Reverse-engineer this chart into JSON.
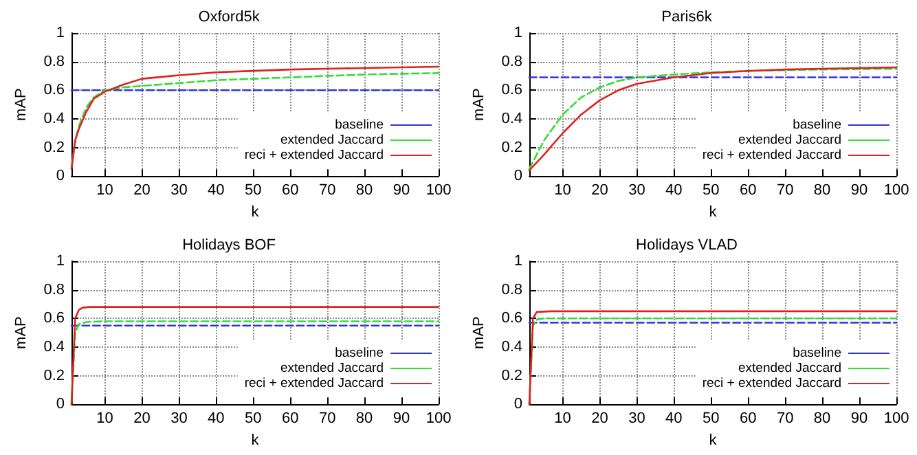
{
  "chart_data": [
    {
      "type": "line",
      "title": "Oxford5k",
      "xlabel": "k",
      "ylabel": "mAP",
      "xlim": [
        1,
        100
      ],
      "ylim": [
        0,
        1
      ],
      "xticks": [
        10,
        20,
        30,
        40,
        50,
        60,
        70,
        80,
        90,
        100
      ],
      "yticks": [
        0,
        0.2,
        0.4,
        0.6,
        0.8,
        1
      ],
      "grid": true,
      "legend": "bottom right",
      "marker": "none",
      "series": [
        {
          "name": "baseline",
          "color": "#3333dd",
          "line_style": "dashed",
          "x": [
            1,
            100
          ],
          "values": [
            0.6,
            0.6
          ]
        },
        {
          "name": "extended Jaccard",
          "color": "#33dd33",
          "line_style": "dashed",
          "x": [
            1,
            2,
            3,
            5,
            7,
            10,
            15,
            20,
            30,
            40,
            50,
            60,
            70,
            80,
            90,
            100
          ],
          "values": [
            0.05,
            0.25,
            0.35,
            0.48,
            0.55,
            0.6,
            0.62,
            0.63,
            0.65,
            0.67,
            0.68,
            0.69,
            0.7,
            0.71,
            0.715,
            0.72
          ]
        },
        {
          "name": "reci + extended Jaccard",
          "color": "#dd2222",
          "line_style": "solid",
          "x": [
            1,
            2,
            3,
            5,
            7,
            10,
            15,
            20,
            30,
            40,
            50,
            60,
            70,
            80,
            90,
            100
          ],
          "values": [
            0.05,
            0.25,
            0.33,
            0.45,
            0.54,
            0.59,
            0.64,
            0.68,
            0.705,
            0.725,
            0.735,
            0.745,
            0.75,
            0.755,
            0.76,
            0.765
          ]
        }
      ]
    },
    {
      "type": "line",
      "title": "Paris6k",
      "xlabel": "k",
      "ylabel": "mAP",
      "xlim": [
        1,
        100
      ],
      "ylim": [
        0,
        1
      ],
      "xticks": [
        10,
        20,
        30,
        40,
        50,
        60,
        70,
        80,
        90,
        100
      ],
      "yticks": [
        0,
        0.2,
        0.4,
        0.6,
        0.8,
        1
      ],
      "grid": true,
      "legend": "bottom right",
      "marker": "none",
      "series": [
        {
          "name": "baseline",
          "color": "#3333dd",
          "line_style": "dashed",
          "x": [
            1,
            100
          ],
          "values": [
            0.69,
            0.69
          ]
        },
        {
          "name": "extended Jaccard",
          "color": "#33dd33",
          "line_style": "dashed",
          "x": [
            1,
            5,
            10,
            15,
            20,
            25,
            30,
            40,
            50,
            60,
            70,
            80,
            90,
            100
          ],
          "values": [
            0.05,
            0.25,
            0.43,
            0.55,
            0.62,
            0.665,
            0.69,
            0.71,
            0.725,
            0.735,
            0.74,
            0.745,
            0.748,
            0.75
          ]
        },
        {
          "name": "reci + extended Jaccard",
          "color": "#dd2222",
          "line_style": "solid",
          "x": [
            1,
            5,
            10,
            15,
            20,
            25,
            30,
            40,
            50,
            60,
            70,
            80,
            90,
            100
          ],
          "values": [
            0.04,
            0.15,
            0.3,
            0.43,
            0.53,
            0.6,
            0.645,
            0.69,
            0.72,
            0.735,
            0.745,
            0.75,
            0.755,
            0.76
          ]
        }
      ]
    },
    {
      "type": "line",
      "title": "Holidays BOF",
      "xlabel": "k",
      "ylabel": "mAP",
      "xlim": [
        1,
        100
      ],
      "ylim": [
        0,
        1
      ],
      "xticks": [
        10,
        20,
        30,
        40,
        50,
        60,
        70,
        80,
        90,
        100
      ],
      "yticks": [
        0,
        0.2,
        0.4,
        0.6,
        0.8,
        1
      ],
      "grid": true,
      "legend": "bottom right",
      "marker": "none",
      "series": [
        {
          "name": "baseline",
          "color": "#3333dd",
          "line_style": "dashed",
          "x": [
            1,
            100
          ],
          "values": [
            0.55,
            0.55
          ]
        },
        {
          "name": "extended Jaccard",
          "color": "#33dd33",
          "line_style": "dashed",
          "x": [
            1,
            2,
            3,
            5,
            10,
            100
          ],
          "values": [
            0,
            0.5,
            0.56,
            0.575,
            0.58,
            0.58
          ]
        },
        {
          "name": "reci + extended Jaccard",
          "color": "#dd2222",
          "line_style": "solid",
          "x": [
            1,
            2,
            3,
            4,
            6,
            10,
            100
          ],
          "values": [
            0,
            0.6,
            0.66,
            0.675,
            0.68,
            0.68,
            0.68
          ]
        }
      ]
    },
    {
      "type": "line",
      "title": "Holidays VLAD",
      "xlabel": "k",
      "ylabel": "mAP",
      "xlim": [
        1,
        100
      ],
      "ylim": [
        0,
        1
      ],
      "xticks": [
        10,
        20,
        30,
        40,
        50,
        60,
        70,
        80,
        90,
        100
      ],
      "yticks": [
        0,
        0.2,
        0.4,
        0.6,
        0.8,
        1
      ],
      "grid": true,
      "legend": "bottom right",
      "marker": "none",
      "series": [
        {
          "name": "baseline",
          "color": "#3333dd",
          "line_style": "dashed",
          "x": [
            1,
            100
          ],
          "values": [
            0.57,
            0.57
          ]
        },
        {
          "name": "extended Jaccard",
          "color": "#33dd33",
          "line_style": "dashed",
          "x": [
            1,
            2,
            3,
            5,
            100
          ],
          "values": [
            0,
            0.55,
            0.59,
            0.6,
            0.6
          ]
        },
        {
          "name": "reci + extended Jaccard",
          "color": "#dd2222",
          "line_style": "solid",
          "x": [
            1,
            2,
            3,
            7,
            100
          ],
          "values": [
            0,
            0.6,
            0.645,
            0.65,
            0.65
          ]
        }
      ]
    }
  ]
}
